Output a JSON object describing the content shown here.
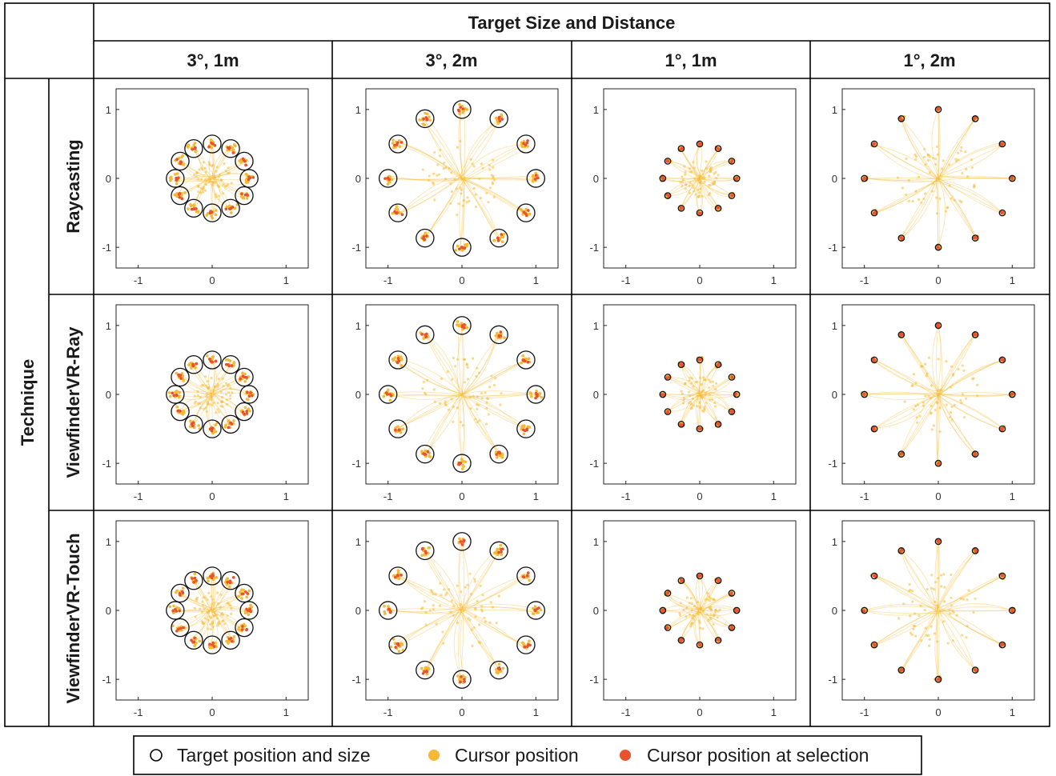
{
  "header": {
    "top_title": "Target Size and Distance",
    "row_group_title": "Technique",
    "columns": [
      {
        "label": "3°, 1m",
        "size_deg": 3,
        "distance_m": 1
      },
      {
        "label": "3°, 2m",
        "size_deg": 3,
        "distance_m": 2
      },
      {
        "label": "1°, 1m",
        "size_deg": 1,
        "distance_m": 1
      },
      {
        "label": "1°, 2m",
        "size_deg": 1,
        "distance_m": 2
      }
    ],
    "rows": [
      {
        "label": "Raycasting"
      },
      {
        "label": "ViewfinderVR-Ray"
      },
      {
        "label": "ViewfinderVR-Touch"
      }
    ]
  },
  "legend": {
    "items": [
      {
        "label": "Target position and size",
        "marker": "open-circle",
        "color": "#000000"
      },
      {
        "label": "Cursor position",
        "marker": "dot",
        "color": "#f5b935"
      },
      {
        "label": "Cursor position at selection",
        "marker": "dot",
        "color": "#e8532e"
      }
    ]
  },
  "colors": {
    "cursor": "#f5b935",
    "selection": "#e8532e",
    "target_outline": "#000000",
    "grid_border": "#000000"
  },
  "chart_data": {
    "type": "scatter",
    "layout": "3x4 small multiples",
    "xlim": [
      -1.3,
      1.3
    ],
    "ylim": [
      -1.3,
      1.3
    ],
    "xticks": [
      -1,
      0,
      1
    ],
    "yticks": [
      -1,
      0,
      1
    ],
    "tick_labels": [
      "-1",
      "0",
      "1"
    ],
    "targets_per_panel": 12,
    "target_ring_radius_by_column": [
      0.5,
      1.0,
      0.5,
      1.0
    ],
    "target_radius_by_column": [
      0.12,
      0.12,
      0.04,
      0.04
    ],
    "panels": [
      {
        "row": "Raycasting",
        "column": "3°, 1m"
      },
      {
        "row": "Raycasting",
        "column": "3°, 2m"
      },
      {
        "row": "Raycasting",
        "column": "1°, 1m"
      },
      {
        "row": "Raycasting",
        "column": "1°, 2m"
      },
      {
        "row": "ViewfinderVR-Ray",
        "column": "3°, 1m"
      },
      {
        "row": "ViewfinderVR-Ray",
        "column": "3°, 2m"
      },
      {
        "row": "ViewfinderVR-Ray",
        "column": "1°, 1m"
      },
      {
        "row": "ViewfinderVR-Ray",
        "column": "1°, 2m"
      },
      {
        "row": "ViewfinderVR-Touch",
        "column": "3°, 1m"
      },
      {
        "row": "ViewfinderVR-Touch",
        "column": "3°, 2m"
      },
      {
        "row": "ViewfinderVR-Touch",
        "column": "1°, 1m"
      },
      {
        "row": "ViewfinderVR-Touch",
        "column": "1°, 2m"
      }
    ],
    "series": [
      {
        "name": "Target position and size"
      },
      {
        "name": "Cursor position"
      },
      {
        "name": "Cursor position at selection"
      }
    ]
  }
}
